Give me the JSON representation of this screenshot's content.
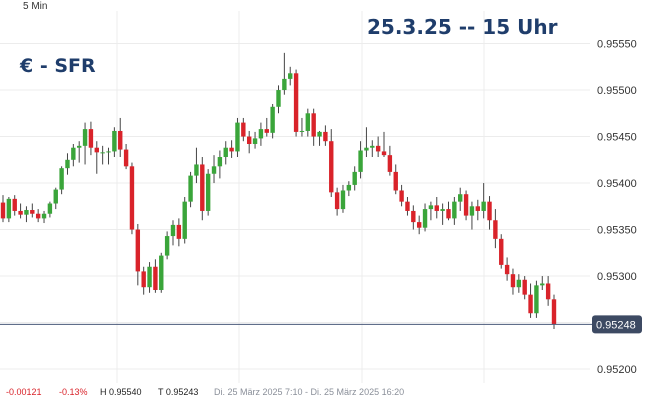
{
  "interval_label": "5 Min",
  "date_label": "25.3.25 -- 15 Uhr",
  "pair_label": "€ - SFR",
  "footer": {
    "change_abs": "-0.00121",
    "change_pct": "-0.13%",
    "high": "H 0.95540",
    "low": "T 0.95243",
    "range": "Di. 25 März 2025 7:10 - Di. 25 März 2025 16:20"
  },
  "chart_data": {
    "type": "candlestick",
    "ylim": [
      0.95185,
      0.95585
    ],
    "yticks": [
      0.952,
      0.9525,
      0.953,
      0.9535,
      0.954,
      0.9545,
      0.955,
      0.9555
    ],
    "ytick_labels": [
      "0.95200",
      "0.95250",
      "0.95300",
      "0.95350",
      "0.95400",
      "0.95450",
      "0.95500",
      "0.95550"
    ],
    "last_price": 0.95248,
    "last_price_label": "0.95248",
    "grid": true,
    "colors": {
      "up": "#3aa53a",
      "down": "#d9232a",
      "last_line": "#4a5a7a",
      "last_box": "#3d4a63",
      "grid": "#ececec"
    },
    "candles": [
      [
        0.95379,
        0.95387,
        0.95358,
        0.95362
      ],
      [
        0.95362,
        0.95385,
        0.95358,
        0.95383
      ],
      [
        0.95383,
        0.95387,
        0.95365,
        0.9537
      ],
      [
        0.9537,
        0.95378,
        0.95362,
        0.95366
      ],
      [
        0.95366,
        0.95375,
        0.95358,
        0.95371
      ],
      [
        0.95371,
        0.95378,
        0.95363,
        0.95367
      ],
      [
        0.95367,
        0.95372,
        0.95358,
        0.95362
      ],
      [
        0.95362,
        0.9537,
        0.95357,
        0.95367
      ],
      [
        0.95367,
        0.9538,
        0.95363,
        0.95378
      ],
      [
        0.95378,
        0.95395,
        0.95372,
        0.95393
      ],
      [
        0.95393,
        0.95418,
        0.95388,
        0.95416
      ],
      [
        0.95416,
        0.95432,
        0.95409,
        0.95425
      ],
      [
        0.95425,
        0.95442,
        0.95418,
        0.95438
      ],
      [
        0.95438,
        0.95445,
        0.95422,
        0.9544
      ],
      [
        0.9544,
        0.95465,
        0.9542,
        0.95458
      ],
      [
        0.95458,
        0.95466,
        0.9543,
        0.95438
      ],
      [
        0.95438,
        0.95445,
        0.9541,
        0.95433
      ],
      [
        0.95433,
        0.9544,
        0.9542,
        0.95433
      ],
      [
        0.95433,
        0.95438,
        0.9542,
        0.95434
      ],
      [
        0.95434,
        0.9546,
        0.95428,
        0.95456
      ],
      [
        0.95456,
        0.9547,
        0.95428,
        0.95436
      ],
      [
        0.95436,
        0.95442,
        0.95415,
        0.95418
      ],
      [
        0.95418,
        0.95422,
        0.95345,
        0.9535
      ],
      [
        0.9535,
        0.95356,
        0.9529,
        0.95305
      ],
      [
        0.95305,
        0.9531,
        0.9528,
        0.95288
      ],
      [
        0.95288,
        0.95315,
        0.95282,
        0.9531
      ],
      [
        0.9531,
        0.95318,
        0.95282,
        0.95285
      ],
      [
        0.95285,
        0.95325,
        0.95282,
        0.95322
      ],
      [
        0.95322,
        0.95348,
        0.95318,
        0.95343
      ],
      [
        0.95343,
        0.9536,
        0.95333,
        0.95355
      ],
      [
        0.95355,
        0.95362,
        0.95332,
        0.9534
      ],
      [
        0.9534,
        0.95385,
        0.95335,
        0.9538
      ],
      [
        0.9538,
        0.95412,
        0.95374,
        0.95408
      ],
      [
        0.95408,
        0.95438,
        0.954,
        0.9542
      ],
      [
        0.9542,
        0.95428,
        0.9536,
        0.9537
      ],
      [
        0.9537,
        0.95415,
        0.95365,
        0.9541
      ],
      [
        0.9541,
        0.9543,
        0.954,
        0.95418
      ],
      [
        0.95418,
        0.95435,
        0.95405,
        0.95428
      ],
      [
        0.95428,
        0.95445,
        0.9542,
        0.95438
      ],
      [
        0.95438,
        0.95446,
        0.95427,
        0.95434
      ],
      [
        0.95434,
        0.9547,
        0.95428,
        0.95465
      ],
      [
        0.95465,
        0.9547,
        0.95445,
        0.9545
      ],
      [
        0.9545,
        0.95456,
        0.95432,
        0.95442
      ],
      [
        0.95442,
        0.95455,
        0.95437,
        0.95448
      ],
      [
        0.95448,
        0.95465,
        0.9544,
        0.95458
      ],
      [
        0.95458,
        0.9547,
        0.9545,
        0.95454
      ],
      [
        0.95454,
        0.95485,
        0.95448,
        0.95482
      ],
      [
        0.95482,
        0.95505,
        0.95475,
        0.955
      ],
      [
        0.955,
        0.9554,
        0.95495,
        0.95512
      ],
      [
        0.95512,
        0.95525,
        0.95505,
        0.95518
      ],
      [
        0.95518,
        0.95522,
        0.9545,
        0.95455
      ],
      [
        0.95455,
        0.9547,
        0.9545,
        0.95456
      ],
      [
        0.95456,
        0.9548,
        0.9545,
        0.95475
      ],
      [
        0.95475,
        0.9548,
        0.9544,
        0.9545
      ],
      [
        0.9545,
        0.95456,
        0.9544,
        0.95455
      ],
      [
        0.95455,
        0.95462,
        0.9544,
        0.95445
      ],
      [
        0.95445,
        0.95458,
        0.95385,
        0.9539
      ],
      [
        0.9539,
        0.95395,
        0.95365,
        0.95372
      ],
      [
        0.95372,
        0.95398,
        0.95368,
        0.95392
      ],
      [
        0.95392,
        0.95402,
        0.95386,
        0.95398
      ],
      [
        0.95398,
        0.95418,
        0.95392,
        0.95412
      ],
      [
        0.95412,
        0.95445,
        0.95405,
        0.95435
      ],
      [
        0.95435,
        0.9546,
        0.95428,
        0.95438
      ],
      [
        0.95438,
        0.95446,
        0.95428,
        0.9544
      ],
      [
        0.9544,
        0.9545,
        0.95428,
        0.95434
      ],
      [
        0.95434,
        0.95455,
        0.95428,
        0.9543
      ],
      [
        0.9543,
        0.9544,
        0.95408,
        0.95412
      ],
      [
        0.95412,
        0.9542,
        0.95388,
        0.95392
      ],
      [
        0.95392,
        0.95398,
        0.95375,
        0.9538
      ],
      [
        0.9538,
        0.95385,
        0.95365,
        0.9537
      ],
      [
        0.9537,
        0.95376,
        0.9535,
        0.95358
      ],
      [
        0.95358,
        0.95365,
        0.95345,
        0.95352
      ],
      [
        0.95352,
        0.95378,
        0.95348,
        0.95372
      ],
      [
        0.95372,
        0.9538,
        0.9536,
        0.95376
      ],
      [
        0.95376,
        0.95385,
        0.95362,
        0.9537
      ],
      [
        0.9537,
        0.95378,
        0.95355,
        0.95372
      ],
      [
        0.95372,
        0.9538,
        0.9536,
        0.95362
      ],
      [
        0.95362,
        0.95385,
        0.95355,
        0.9538
      ],
      [
        0.9538,
        0.95395,
        0.9537,
        0.95388
      ],
      [
        0.95388,
        0.95392,
        0.9536,
        0.95365
      ],
      [
        0.95365,
        0.9538,
        0.9535,
        0.95375
      ],
      [
        0.95375,
        0.95382,
        0.9536,
        0.9537
      ],
      [
        0.9537,
        0.954,
        0.95362,
        0.9538
      ],
      [
        0.9538,
        0.95386,
        0.9535,
        0.9536
      ],
      [
        0.9536,
        0.95372,
        0.9533,
        0.9534
      ],
      [
        0.9534,
        0.95345,
        0.95308,
        0.95312
      ],
      [
        0.95312,
        0.9532,
        0.95295,
        0.95302
      ],
      [
        0.95302,
        0.95308,
        0.9528,
        0.95288
      ],
      [
        0.95288,
        0.95302,
        0.95282,
        0.95296
      ],
      [
        0.95296,
        0.953,
        0.95275,
        0.9528
      ],
      [
        0.9528,
        0.95292,
        0.95255,
        0.9526
      ],
      [
        0.9526,
        0.95295,
        0.95255,
        0.9529
      ],
      [
        0.9529,
        0.953,
        0.95285,
        0.95292
      ],
      [
        0.95292,
        0.953,
        0.95268,
        0.95275
      ],
      [
        0.95275,
        0.9528,
        0.95243,
        0.95248
      ]
    ]
  }
}
